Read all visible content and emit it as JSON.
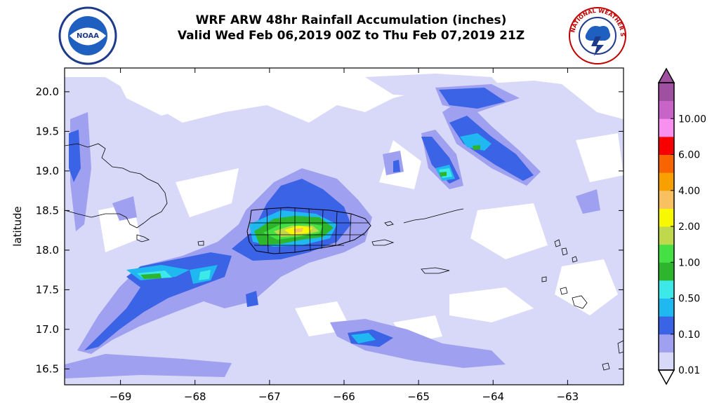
{
  "title": {
    "line1": "WRF ARW 48hr Rainfall Accumulation (inches)",
    "line2": "Valid Wed Feb 06,2019 00Z to Thu Feb 07,2019 21Z"
  },
  "logos": {
    "left": {
      "name": "noaa-logo",
      "text": "NOAA"
    },
    "right": {
      "name": "nws-logo",
      "text": "NATIONAL WEATHER SERVICE"
    }
  },
  "map": {
    "ylabel": "latitude",
    "lon_range": [
      -69.75,
      -62.25
    ],
    "lat_range": [
      16.3,
      20.3
    ],
    "x_ticks": [
      "−69",
      "−68",
      "−67",
      "−66",
      "−65",
      "−64",
      "−63"
    ],
    "y_ticks": [
      "16.5",
      "17.0",
      "17.5",
      "18.0",
      "18.5",
      "19.0",
      "19.5",
      "20.0"
    ]
  },
  "colorbar": {
    "levels": [
      "0.01",
      "0.10",
      "0.50",
      "1.00",
      "2.00",
      "4.00",
      "6.00",
      "10.00"
    ],
    "colors": [
      "#d8d8f8",
      "#a0a0f0",
      "#3b63e6",
      "#1fb8f0",
      "#3de8e8",
      "#2db52d",
      "#44e044",
      "#c0d84c",
      "#f8f800",
      "#f8c060",
      "#f8a000",
      "#f86400",
      "#f80000",
      "#f890f0",
      "#c864c8",
      "#a050a0"
    ]
  }
}
